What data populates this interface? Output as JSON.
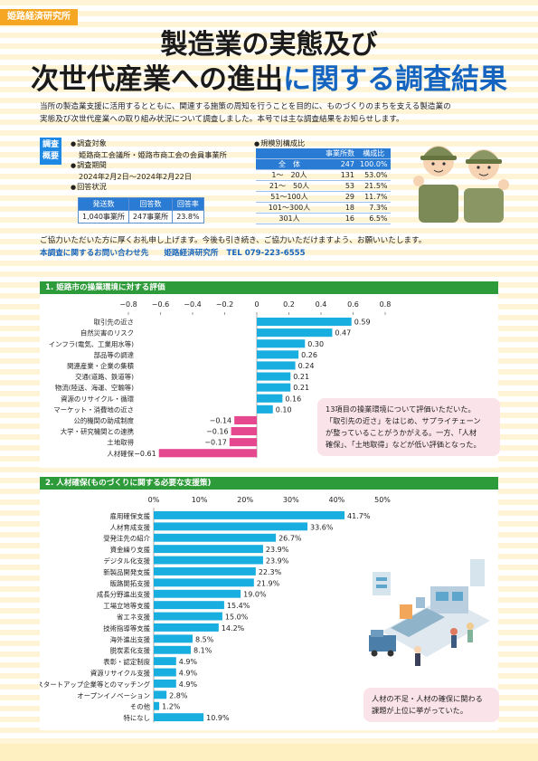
{
  "header": {
    "org_tag": "姫路経済研究所",
    "title_line1": "製造業の実態及び",
    "title_line2_a": "次世代産業への進出",
    "title_line2_b": "に関する調査結果"
  },
  "intro": {
    "line1": "当所の製造業支援に活用するとともに、関連する施策の周知を行うことを目的に、ものづくりのまちを支える製造業の",
    "line2": "実態及び次世代産業への取り組み状況について調査しました。本号では主な調査結果をお知らせします。"
  },
  "overview": {
    "tag": "調査概要",
    "target_label": "調査対象",
    "target_value": "姫路商工会議所・姫路市商工会の会員事業所",
    "period_label": "調査期間",
    "period_value": "2024年2月2日〜2024年2月22日",
    "response_label": "回答状況",
    "response_table": {
      "headers": [
        "発送数",
        "回答数",
        "回答率"
      ],
      "values": [
        "1,040事業所",
        "247事業所",
        "23.8%"
      ]
    },
    "scale_label": "規模別構成比",
    "scale_table": {
      "headers": [
        "",
        "事業所数",
        "構成比"
      ],
      "rows": [
        [
          "全　体",
          "247",
          "100.0%"
        ],
        [
          "1〜　20人",
          "131",
          "53.0%"
        ],
        [
          "21〜　50人",
          "53",
          "21.5%"
        ],
        [
          "51〜100人",
          "29",
          "11.7%"
        ],
        [
          "101〜300人",
          "18",
          "7.3%"
        ],
        [
          "301人",
          "16",
          "6.5%"
        ]
      ]
    }
  },
  "thanks": "ご協力いただいた方に厚くお礼申し上げます。今後も引き続き、ご協力いただけますよう、お願いいたします。",
  "contact": {
    "label": "本調査に関するお問い合わせ先",
    "org": "姫路経済研究所",
    "tel": "TEL 079-223-6555"
  },
  "section1": {
    "title": "1. 姫路市の操業環境に対する評価",
    "callout": [
      "13項目の操業環境について評価いただいた。",
      "「取引先の近さ」をはじめ、サプライチェーン",
      "が整っていることがうかがえる。一方、「人材",
      "確保」、「土地取得」などが低い評価となった。"
    ]
  },
  "section2": {
    "title": "2. 人材確保(ものづくりに関する必要な支援策)",
    "callout": [
      "人材の不足・人材の確保に関わる",
      "課題が上位に挙がっていた。"
    ]
  },
  "colors": {
    "accent_blue": "#18aee0",
    "negative_pink": "#e5488f",
    "section_green": "#2e9b3a"
  },
  "chart_data": [
    {
      "type": "bar",
      "orientation": "horizontal",
      "title": "1. 姫路市の操業環境に対する評価",
      "xlim": [
        -0.8,
        0.8
      ],
      "ticks": [
        "−0.8",
        "−0.6",
        "−0.4",
        "−0.2",
        "0",
        "0.2",
        "0.4",
        "0.6",
        "0.8"
      ],
      "categories": [
        "取引先の近さ",
        "自然災害のリスク",
        "インフラ(電気、工業用水等)",
        "部品等の調達",
        "関連産業・企業の集積",
        "交通(道路、鉄道等)",
        "物流(陸送、海運、空輸等)",
        "資源のリサイクル・循環",
        "マーケット・消費地の近さ",
        "公的機関の助成制度",
        "大学・研究機関との連携",
        "土地取得",
        "人材確保"
      ],
      "values": [
        0.59,
        0.47,
        0.3,
        0.26,
        0.24,
        0.21,
        0.21,
        0.16,
        0.1,
        -0.14,
        -0.16,
        -0.17,
        -0.61
      ],
      "labels": [
        "0.59",
        "0.47",
        "0.30",
        "0.26",
        "0.24",
        "0.21",
        "0.21",
        "0.16",
        "0.10",
        "−0.14",
        "−0.16",
        "−0.17",
        "−0.61"
      ]
    },
    {
      "type": "bar",
      "orientation": "horizontal",
      "title": "2. 人材確保(ものづくりに関する必要な支援策)",
      "xlim": [
        0,
        50
      ],
      "ticks": [
        "0%",
        "10%",
        "20%",
        "30%",
        "40%",
        "50%"
      ],
      "categories": [
        "雇用確保支援",
        "人材育成支援",
        "受発注先の紹介",
        "資金繰り支援",
        "デジタル化支援",
        "新製品開発支援",
        "販路開拓支援",
        "成長分野進出支援",
        "工場立地等支援",
        "省エネ支援",
        "技術指導等支援",
        "海外進出支援",
        "脱炭素化支援",
        "表彰・認定制度",
        "資源リサイクル支援",
        "スタートアップ企業等とのマッチング",
        "オープンイノベーション",
        "その他",
        "特になし"
      ],
      "values": [
        41.7,
        33.6,
        26.7,
        23.9,
        23.9,
        22.3,
        21.9,
        19.0,
        15.4,
        15.0,
        14.2,
        8.5,
        8.1,
        4.9,
        4.9,
        4.9,
        2.8,
        1.2,
        10.9
      ],
      "labels": [
        "41.7%",
        "33.6%",
        "26.7%",
        "23.9%",
        "23.9%",
        "22.3%",
        "21.9%",
        "19.0%",
        "15.4%",
        "15.0%",
        "14.2%",
        "8.5%",
        "8.1%",
        "4.9%",
        "4.9%",
        "4.9%",
        "2.8%",
        "1.2%",
        "10.9%"
      ]
    }
  ]
}
